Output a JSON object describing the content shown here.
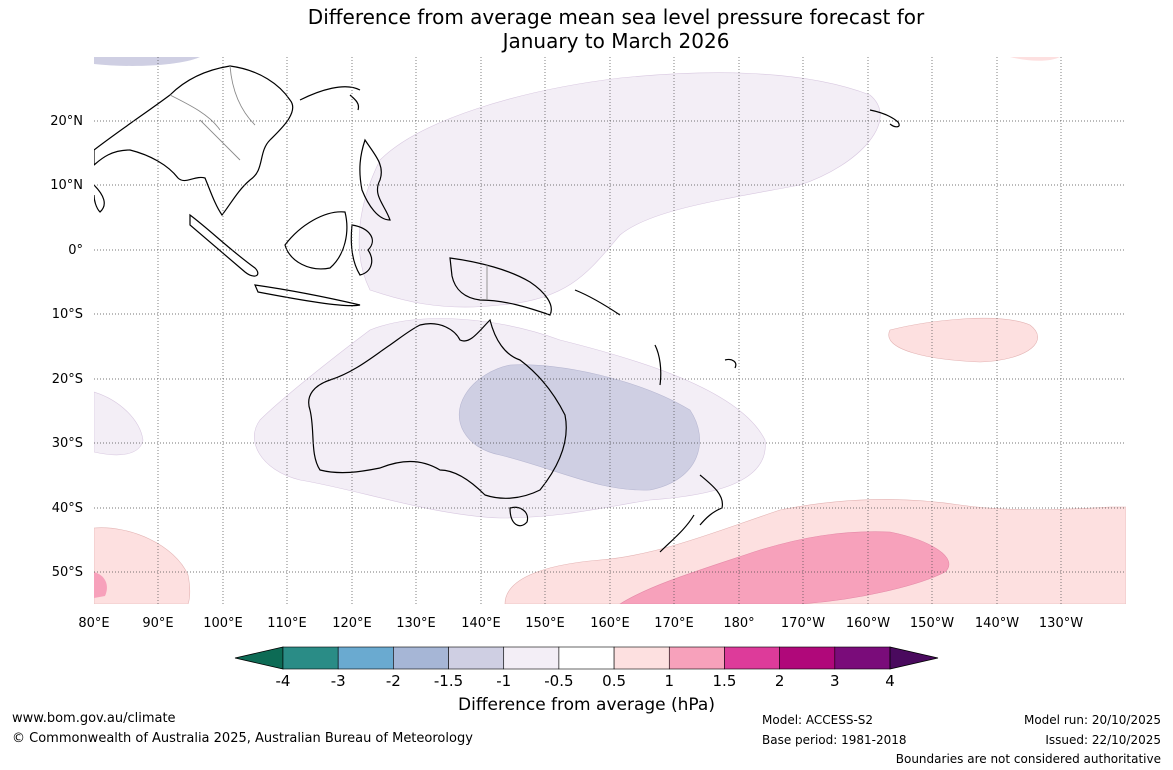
{
  "header": {
    "title_line1": "Difference from average mean sea level pressure forecast for",
    "title_line2": "January to March 2026"
  },
  "map": {
    "lat_labels": [
      "20°N",
      "10°N",
      "0°",
      "10°S",
      "20°S",
      "30°S",
      "40°S",
      "50°S"
    ],
    "lon_labels": [
      "80°E",
      "90°E",
      "100°E",
      "110°E",
      "120°E",
      "130°E",
      "140°E",
      "150°E",
      "160°E",
      "170°E",
      "180°",
      "170°W",
      "160°W",
      "150°W",
      "140°W",
      "130°W"
    ],
    "anomaly_regions": [
      {
        "name": "tropical-west-pacific",
        "range": "-0.5 to -1"
      },
      {
        "name": "central-australia",
        "range": "-1 to -1.5"
      },
      {
        "name": "southern-ocean-nz",
        "range": "1 to 1.5"
      },
      {
        "name": "south-pacific-east",
        "range": "0.5 to 1"
      }
    ]
  },
  "colorbar": {
    "ticks": [
      "-4",
      "-3",
      "-2",
      "-1.5",
      "-1",
      "-0.5",
      "0.5",
      "1",
      "1.5",
      "2",
      "3",
      "4"
    ],
    "colors": [
      "#2a8c86",
      "#6aaad0",
      "#a6b6d6",
      "#cfcfe3",
      "#f3eef6",
      "#ffffff",
      "#fde0e0",
      "#f7a1bb",
      "#dd3b9a",
      "#b0087a",
      "#7a0c7a"
    ],
    "low_extend_color": "#0d6b55",
    "high_extend_color": "#4a0a5e",
    "label": "Difference from average (hPa)"
  },
  "footer": {
    "url": "www.bom.gov.au/climate",
    "copyright": "© Commonwealth of Australia 2025, Australian Bureau of Meteorology",
    "model": "Model: ACCESS-S2",
    "base_period": "Base period: 1981-2018",
    "model_run": "Model run: 20/10/2025",
    "issued": "Issued: 22/10/2025",
    "disclaimer": "Boundaries are not considered authoritative"
  }
}
